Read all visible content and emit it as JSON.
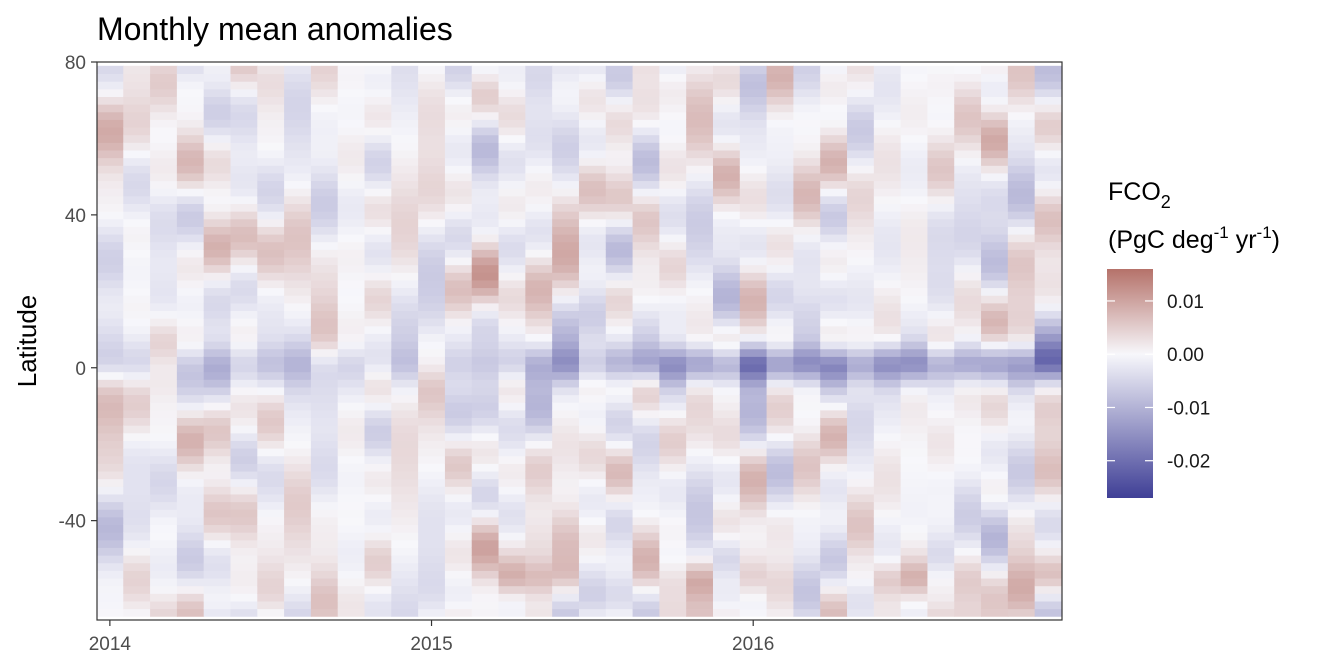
{
  "chart_data": {
    "type": "heatmap",
    "title": "Monthly mean anomalies",
    "xlabel": "",
    "ylabel": "Latitude",
    "x_ticks": [
      {
        "label": "2014",
        "value": 2014.0
      },
      {
        "label": "2015",
        "value": 2015.0
      },
      {
        "label": "2016",
        "value": 2016.0
      }
    ],
    "y_ticks": [
      {
        "label": "80",
        "value": 80
      },
      {
        "label": "40",
        "value": 40
      },
      {
        "label": "0",
        "value": 0
      },
      {
        "label": "-40",
        "value": -40
      }
    ],
    "x_range": [
      2013.96,
      2016.96
    ],
    "y_range": [
      -66,
      80
    ],
    "months": [
      "2014-01",
      "2014-02",
      "2014-03",
      "2014-04",
      "2014-05",
      "2014-06",
      "2014-07",
      "2014-08",
      "2014-09",
      "2014-10",
      "2014-11",
      "2014-12",
      "2015-01",
      "2015-02",
      "2015-03",
      "2015-04",
      "2015-05",
      "2015-06",
      "2015-07",
      "2015-08",
      "2015-09",
      "2015-10",
      "2015-11",
      "2015-12",
      "2016-01",
      "2016-02",
      "2016-03",
      "2016-04",
      "2016-05",
      "2016-06",
      "2016-07",
      "2016-08",
      "2016-09",
      "2016-10",
      "2016-11",
      "2016-12"
    ],
    "latitude_band_step": 2,
    "latitude_band_extent": [
      -64,
      78
    ],
    "legend": {
      "title_main": "FCO",
      "title_sub": "2",
      "unit_prefix": "(PgC deg",
      "unit_exp1": "-1",
      "unit_mid": " yr",
      "unit_exp2": "-1",
      "unit_suffix": ")",
      "breaks": [
        {
          "label": "0.01",
          "value": 0.01
        },
        {
          "label": "0.00",
          "value": 0.0
        },
        {
          "label": "-0.01",
          "value": -0.01
        },
        {
          "label": "-0.02",
          "value": -0.02
        }
      ],
      "limits": [
        -0.027,
        0.016
      ],
      "placement": "right"
    },
    "colors": {
      "low": "#3f3f96",
      "mid": "#f7f7fb",
      "high": "#b5726a"
    },
    "grid": false
  }
}
